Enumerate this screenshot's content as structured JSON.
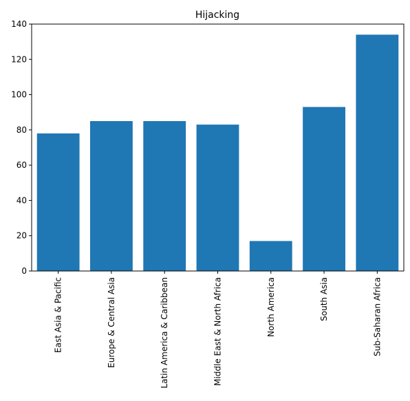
{
  "chart_data": {
    "type": "bar",
    "title": "Hijacking",
    "xlabel": "",
    "ylabel": "",
    "categories": [
      "East Asia & Pacific",
      "Europe & Central Asia",
      "Latin America & Caribbean",
      "Middle East & North Africa",
      "North America",
      "South Asia",
      "Sub-Saharan Africa"
    ],
    "values": [
      78,
      85,
      85,
      83,
      17,
      93,
      134
    ],
    "ylim": [
      0,
      140
    ],
    "yticks": [
      0,
      20,
      40,
      60,
      80,
      100,
      120,
      140
    ],
    "bar_color": "#1f77b4",
    "grid": false,
    "x_tick_rotation": "vertical"
  }
}
